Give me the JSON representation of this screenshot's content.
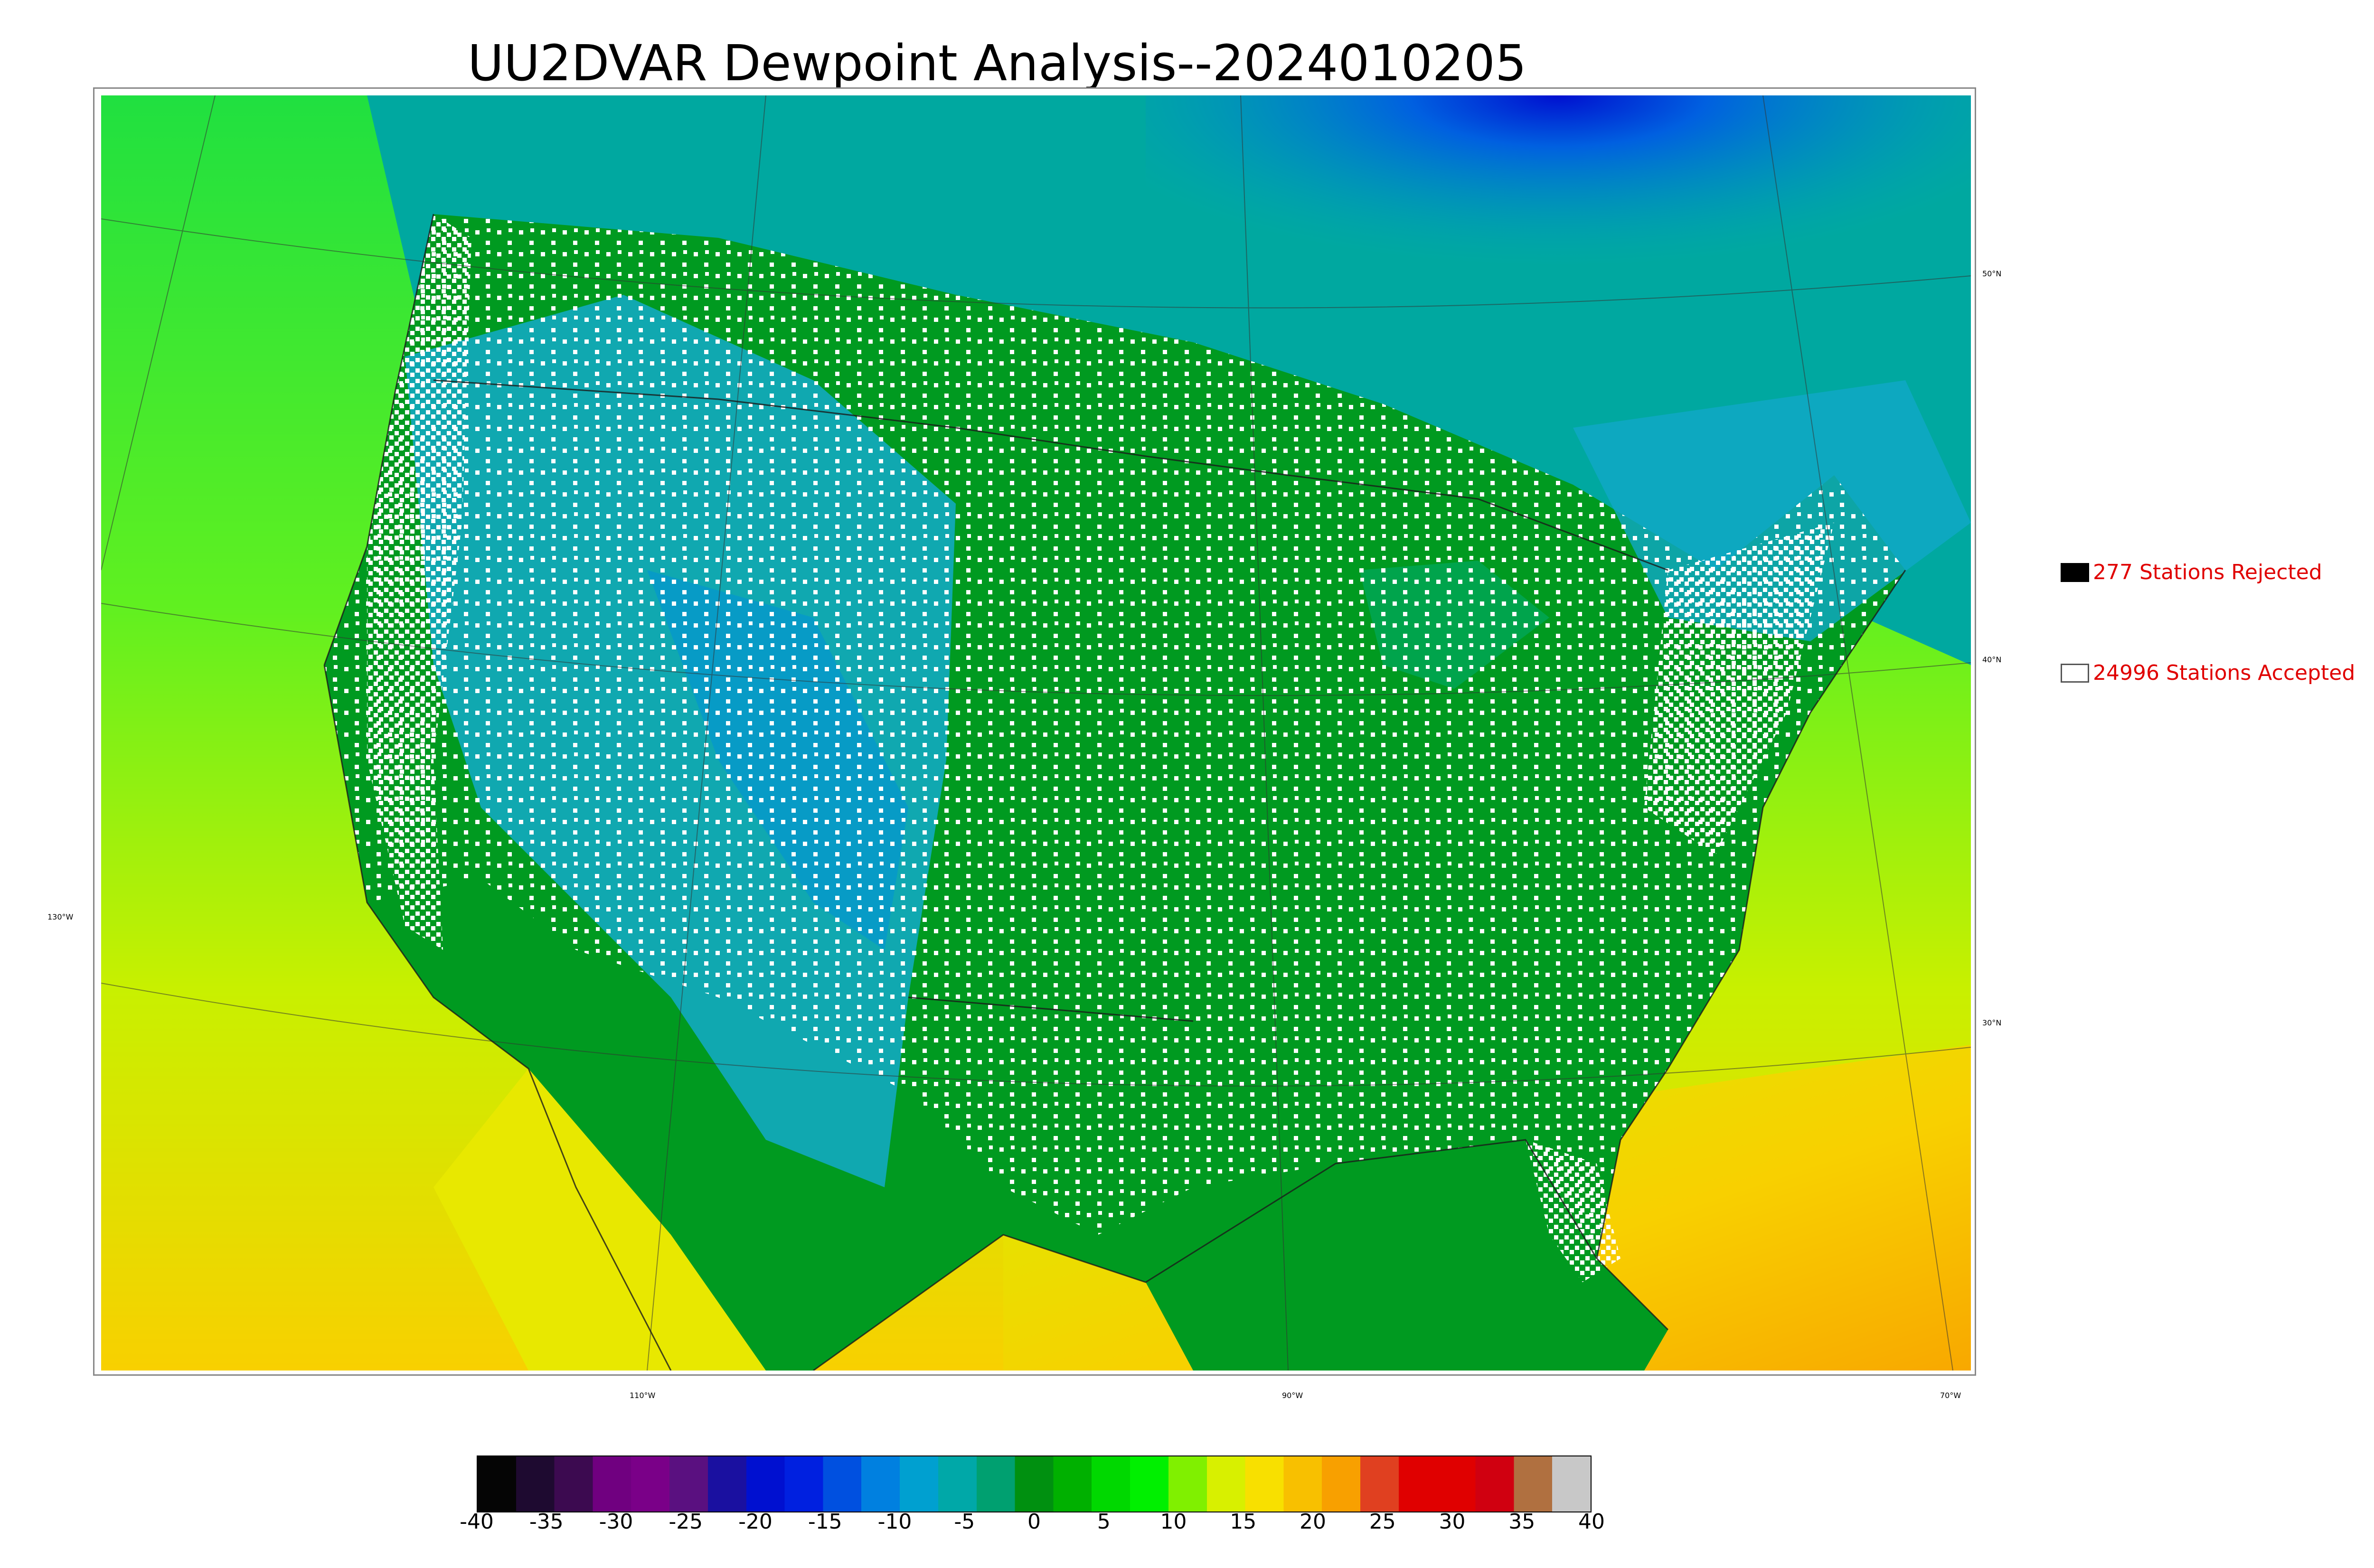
{
  "title": "UU2DVAR Dewpoint Analysis--2024010205",
  "graticule": {
    "lat_labels": [
      "50°N",
      "40°N",
      "30°N"
    ],
    "lon_labels": [
      "130°W",
      "110°W",
      "90°W",
      "70°W"
    ]
  },
  "legend": {
    "rejected": {
      "label": "277 Stations Rejected",
      "color": "#000000"
    },
    "accepted": {
      "label": "24996 Stations Accepted",
      "color": "#ffffff"
    }
  },
  "colorbar": {
    "ticks": [
      "-40",
      "-35",
      "-30",
      "-25",
      "-20",
      "-15",
      "-10",
      "-5",
      "0",
      "5",
      "10",
      "15",
      "20",
      "25",
      "30",
      "35",
      "40"
    ],
    "colors": [
      "#050505",
      "#1e0a30",
      "#3c0a50",
      "#700080",
      "#7a0088",
      "#5a1080",
      "#1a10a0",
      "#0010d0",
      "#0020e0",
      "#0050e0",
      "#0080e0",
      "#00a0d0",
      "#00a8a8",
      "#00a070",
      "#009010",
      "#00b000",
      "#00d800",
      "#00f000",
      "#80f000",
      "#d8f000",
      "#f8e000",
      "#f8c000",
      "#f8a000",
      "#e04020",
      "#e00000",
      "#e00000",
      "#d00010",
      "#b07040",
      "#c8c8c8"
    ]
  }
}
